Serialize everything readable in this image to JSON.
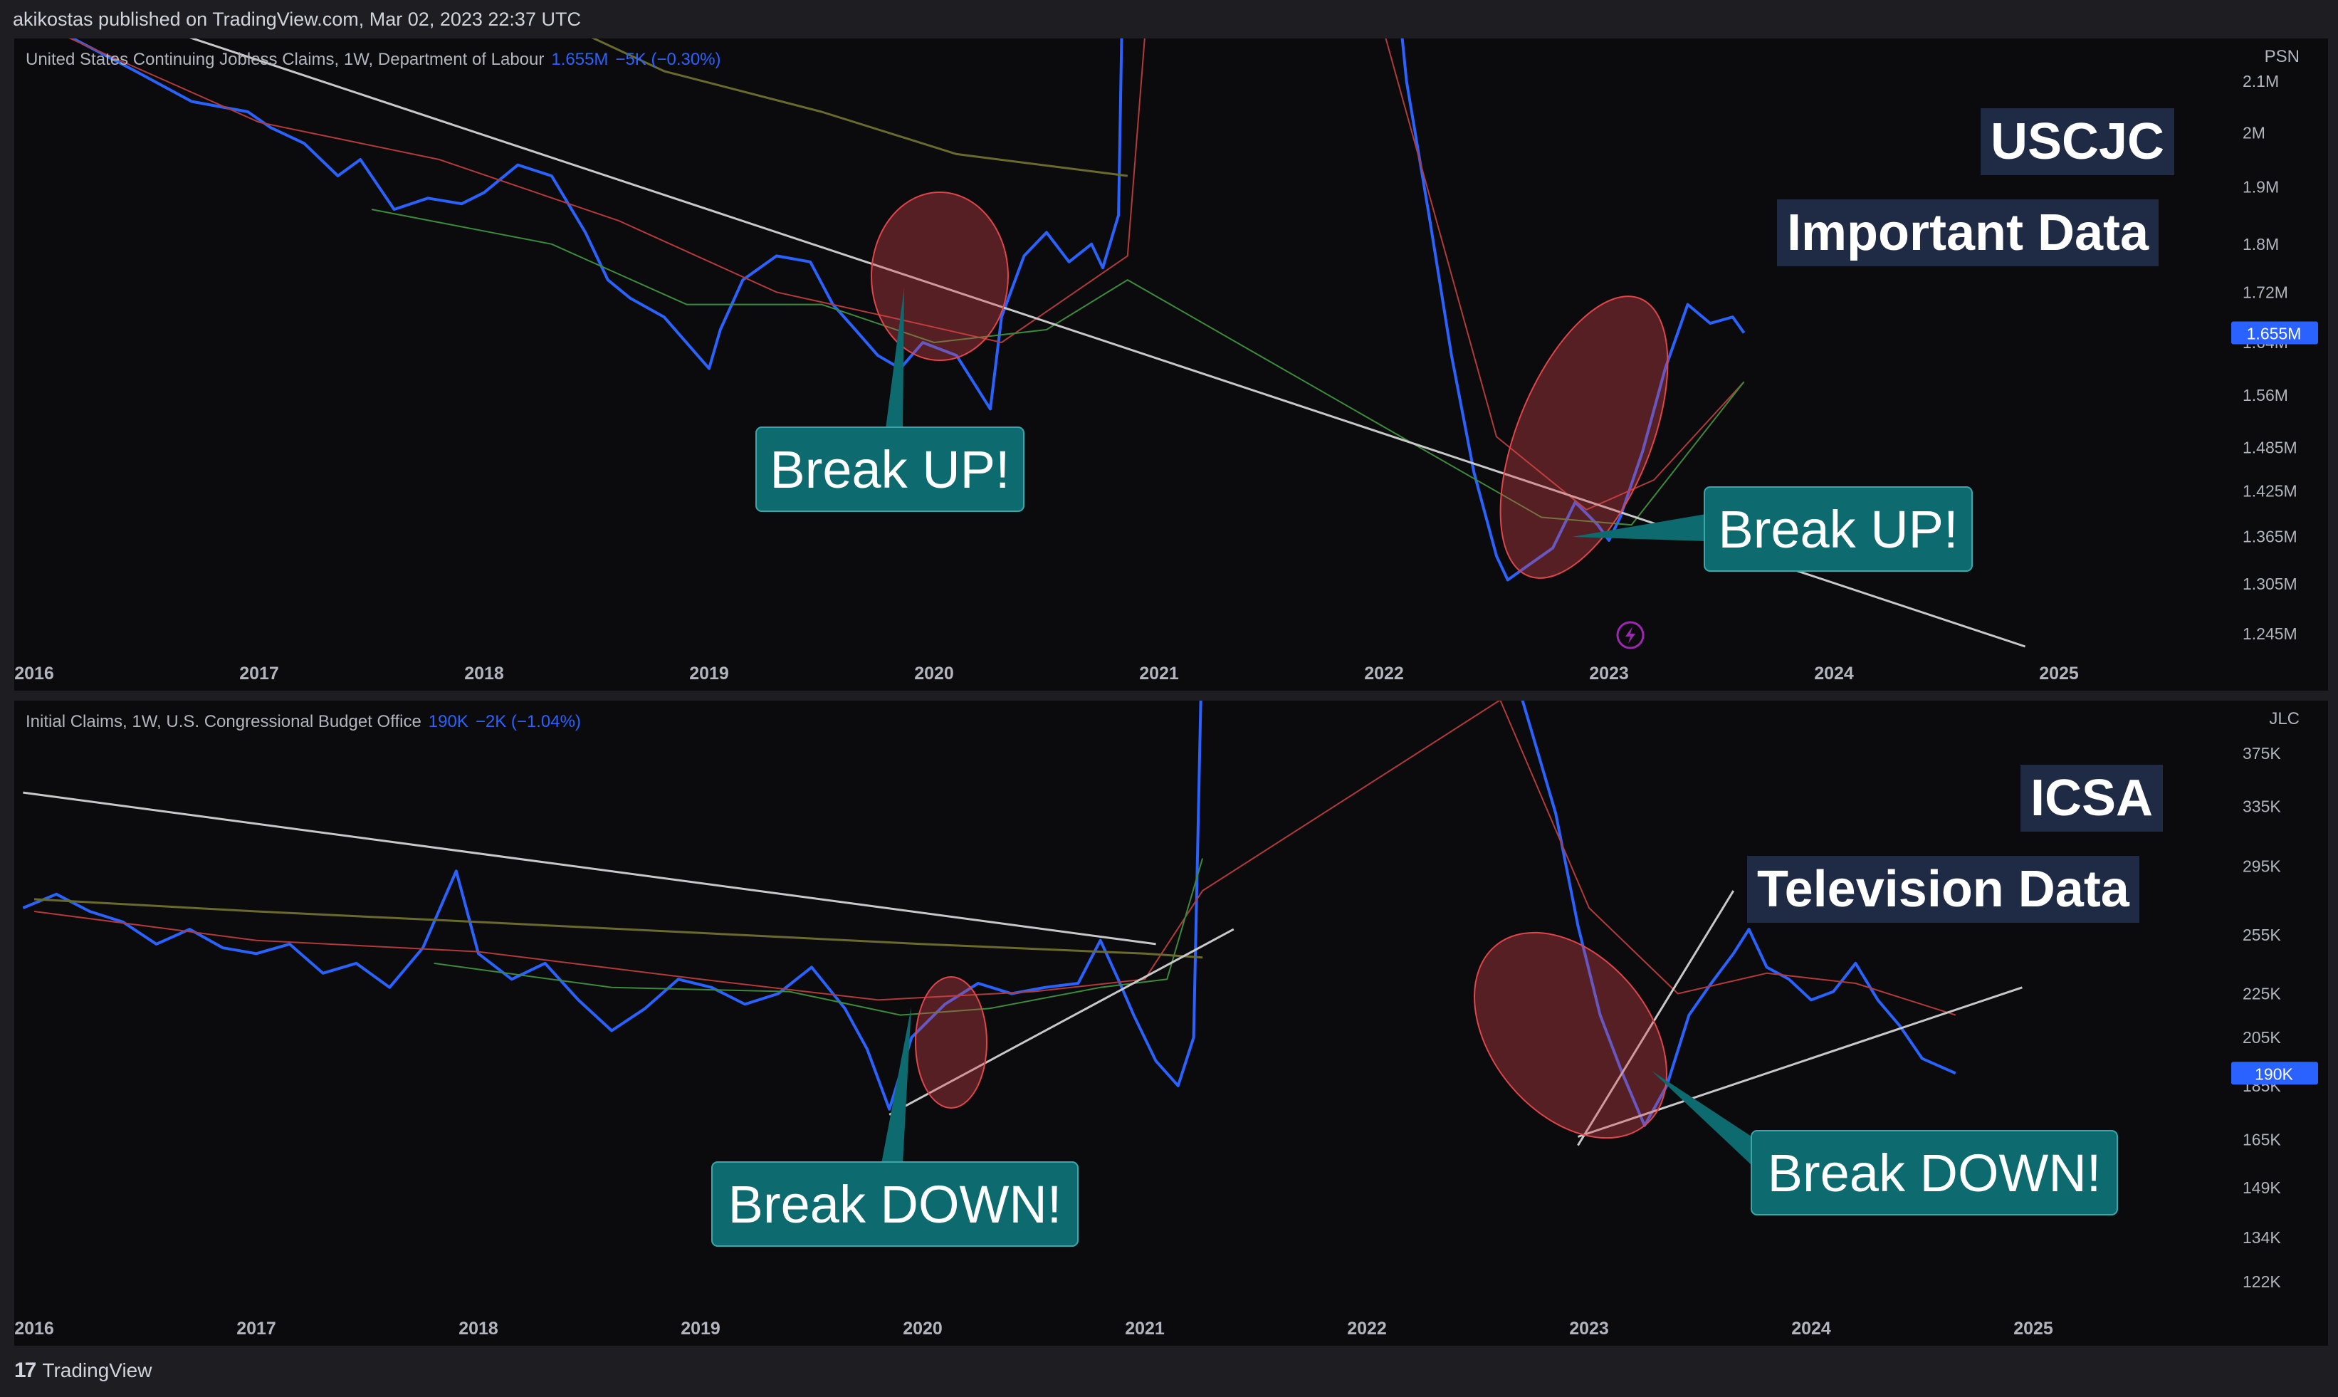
{
  "header": {
    "published": "akikostas published on TradingView.com, Mar 02, 2023 22:37 UTC"
  },
  "footer": {
    "brand": "TradingView",
    "logo_icon": "tradingview-logo-icon"
  },
  "colors": {
    "series": "#2962ff",
    "ma_fast": "#b23a3a",
    "ma_slow": "#3c8a3c",
    "ma_long": "#6b6a2e",
    "trendline": "#c8c8c8",
    "callout": "#0d6b70",
    "ellipse": "#e0454a",
    "label_bg": "#1f2b44",
    "price_tag": "#2962ff"
  },
  "chart_data": [
    {
      "type": "line",
      "legend": {
        "name": "United States Continuing Jobless Claims, 1W, Department of Labour",
        "value": "1.655M",
        "change": "−5K (−0.30%)"
      },
      "unit": "PSN",
      "current_value_label": "1.655M",
      "x_ticks": [
        "2016",
        "2017",
        "2018",
        "2019",
        "2020",
        "2021",
        "2022",
        "2023",
        "2024",
        "2025"
      ],
      "y_ticks": [
        "2.1M",
        "2M",
        "1.9M",
        "1.8M",
        "1.72M",
        "1.64M",
        "1.56M",
        "1.485M",
        "1.425M",
        "1.365M",
        "1.305M",
        "1.245M"
      ],
      "log_scale": true,
      "overlay_labels": [
        "USCJC",
        "Important Data"
      ],
      "annotations": [
        "Break UP!",
        "Break UP!"
      ],
      "series": [
        {
          "values": [
            [
              2015.95,
              2.24
            ],
            [
              2016.2,
              2.18
            ],
            [
              2016.45,
              2.12
            ],
            [
              2016.7,
              2.06
            ],
            [
              2016.95,
              2.04
            ],
            [
              2017.05,
              2.01
            ],
            [
              2017.2,
              1.98
            ],
            [
              2017.35,
              1.92
            ],
            [
              2017.45,
              1.95
            ],
            [
              2017.6,
              1.86
            ],
            [
              2017.75,
              1.88
            ],
            [
              2017.9,
              1.87
            ],
            [
              2018.0,
              1.89
            ],
            [
              2018.15,
              1.94
            ],
            [
              2018.3,
              1.92
            ],
            [
              2018.45,
              1.82
            ],
            [
              2018.55,
              1.74
            ],
            [
              2018.65,
              1.71
            ],
            [
              2018.8,
              1.68
            ],
            [
              2019.0,
              1.6
            ],
            [
              2019.05,
              1.66
            ],
            [
              2019.15,
              1.74
            ],
            [
              2019.3,
              1.78
            ],
            [
              2019.45,
              1.77
            ],
            [
              2019.55,
              1.7
            ],
            [
              2019.65,
              1.66
            ],
            [
              2019.75,
              1.62
            ],
            [
              2019.85,
              1.6
            ],
            [
              2019.95,
              1.64
            ],
            [
              2020.1,
              1.62
            ],
            [
              2020.25,
              1.54
            ],
            [
              2020.3,
              1.68
            ],
            [
              2020.4,
              1.78
            ],
            [
              2020.5,
              1.82
            ],
            [
              2020.6,
              1.77
            ],
            [
              2020.7,
              1.8
            ],
            [
              2020.75,
              1.76
            ],
            [
              2020.82,
              1.85
            ],
            [
              2020.86,
              3.0
            ],
            [
              2022.0,
              2.6
            ],
            [
              2022.1,
              2.1
            ],
            [
              2022.2,
              1.85
            ],
            [
              2022.3,
              1.62
            ],
            [
              2022.4,
              1.45
            ],
            [
              2022.5,
              1.34
            ],
            [
              2022.55,
              1.31
            ],
            [
              2022.65,
              1.33
            ],
            [
              2022.75,
              1.35
            ],
            [
              2022.85,
              1.41
            ],
            [
              2022.95,
              1.38
            ],
            [
              2023.0,
              1.36
            ],
            [
              2023.05,
              1.39
            ],
            [
              2023.15,
              1.48
            ],
            [
              2023.25,
              1.6
            ],
            [
              2023.35,
              1.7
            ],
            [
              2023.45,
              1.67
            ],
            [
              2023.55,
              1.68
            ],
            [
              2023.6,
              1.655
            ]
          ]
        },
        {
          "values": [
            [
              2016.0,
              2.22
            ],
            [
              2017.0,
              2.02
            ],
            [
              2017.8,
              1.95
            ],
            [
              2018.6,
              1.84
            ],
            [
              2019.3,
              1.72
            ],
            [
              2019.8,
              1.68
            ],
            [
              2020.3,
              1.64
            ],
            [
              2020.86,
              1.78
            ],
            [
              2021.0,
              2.6
            ],
            [
              2021.6,
              2.8
            ],
            [
              2022.0,
              2.2
            ],
            [
              2022.5,
              1.5
            ],
            [
              2022.9,
              1.4
            ],
            [
              2023.2,
              1.44
            ],
            [
              2023.6,
              1.58
            ]
          ]
        },
        {
          "values": [
            [
              2017.5,
              1.86
            ],
            [
              2018.3,
              1.8
            ],
            [
              2018.9,
              1.7
            ],
            [
              2019.5,
              1.7
            ],
            [
              2020.0,
              1.64
            ],
            [
              2020.5,
              1.66
            ],
            [
              2020.86,
              1.74
            ],
            [
              2022.7,
              1.39
            ],
            [
              2023.1,
              1.38
            ],
            [
              2023.6,
              1.58
            ]
          ]
        },
        {
          "values": [
            [
              2018.2,
              2.25
            ],
            [
              2018.8,
              2.12
            ],
            [
              2019.5,
              2.04
            ],
            [
              2020.1,
              1.96
            ],
            [
              2020.86,
              1.92
            ]
          ]
        },
        {
          "values": [
            [
              2016.3,
              2.25
            ],
            [
              2024.85,
              1.23
            ]
          ]
        }
      ]
    },
    {
      "type": "line",
      "legend": {
        "name": "Initial Claims, 1W, U.S. Congressional Budget Office",
        "value": "190K",
        "change": "−2K (−1.04%)"
      },
      "unit": "JLC",
      "current_value_label": "190K",
      "x_ticks": [
        "2016",
        "2017",
        "2018",
        "2019",
        "2020",
        "2021",
        "2022",
        "2023",
        "2024",
        "2025"
      ],
      "y_ticks": [
        "375K",
        "335K",
        "295K",
        "255K",
        "225K",
        "205K",
        "185K",
        "165K",
        "149K",
        "134K",
        "122K"
      ],
      "log_scale": true,
      "overlay_labels": [
        "ICSA",
        "Television Data"
      ],
      "annotations": [
        "Break DOWN!",
        "Break DOWN!"
      ],
      "series": [
        {
          "values": [
            [
              2015.95,
              270
            ],
            [
              2016.1,
              278
            ],
            [
              2016.25,
              268
            ],
            [
              2016.4,
              262
            ],
            [
              2016.55,
              250
            ],
            [
              2016.7,
              258
            ],
            [
              2016.85,
              248
            ],
            [
              2017.0,
              245
            ],
            [
              2017.15,
              250
            ],
            [
              2017.3,
              235
            ],
            [
              2017.45,
              240
            ],
            [
              2017.6,
              228
            ],
            [
              2017.75,
              248
            ],
            [
              2017.9,
              292
            ],
            [
              2018.0,
              245
            ],
            [
              2018.15,
              232
            ],
            [
              2018.3,
              240
            ],
            [
              2018.45,
              222
            ],
            [
              2018.6,
              208
            ],
            [
              2018.75,
              218
            ],
            [
              2018.9,
              232
            ],
            [
              2019.05,
              228
            ],
            [
              2019.2,
              220
            ],
            [
              2019.35,
              225
            ],
            [
              2019.5,
              238
            ],
            [
              2019.65,
              218
            ],
            [
              2019.75,
              200
            ],
            [
              2019.85,
              176
            ],
            [
              2019.95,
              205
            ],
            [
              2020.1,
              220
            ],
            [
              2020.25,
              230
            ],
            [
              2020.4,
              225
            ],
            [
              2020.55,
              228
            ],
            [
              2020.7,
              230
            ],
            [
              2020.8,
              252
            ],
            [
              2020.88,
              232
            ],
            [
              2020.95,
              215
            ],
            [
              2021.05,
              195
            ],
            [
              2021.15,
              185
            ],
            [
              2021.22,
              205
            ],
            [
              2021.26,
              500
            ],
            [
              2022.55,
              520
            ],
            [
              2022.7,
              420
            ],
            [
              2022.85,
              330
            ],
            [
              2022.95,
              260
            ],
            [
              2023.05,
              215
            ],
            [
              2023.15,
              190
            ],
            [
              2023.25,
              170
            ],
            [
              2023.35,
              185
            ],
            [
              2023.45,
              215
            ],
            [
              2023.55,
              230
            ],
            [
              2023.65,
              245
            ],
            [
              2023.72,
              258
            ],
            [
              2023.8,
              238
            ],
            [
              2023.9,
              232
            ],
            [
              2024.0,
              222
            ],
            [
              2024.1,
              226
            ],
            [
              2024.2,
              240
            ],
            [
              2024.3,
              222
            ],
            [
              2024.4,
              210
            ],
            [
              2024.5,
              196
            ],
            [
              2024.6,
              192
            ],
            [
              2024.65,
              190
            ]
          ]
        },
        {
          "values": [
            [
              2016.0,
              268
            ],
            [
              2017.0,
              252
            ],
            [
              2018.0,
              246
            ],
            [
              2019.0,
              232
            ],
            [
              2019.8,
              222
            ],
            [
              2020.5,
              226
            ],
            [
              2021.0,
              232
            ],
            [
              2021.26,
              280
            ],
            [
              2022.6,
              420
            ],
            [
              2023.0,
              270
            ],
            [
              2023.4,
              225
            ],
            [
              2023.8,
              235
            ],
            [
              2024.2,
              230
            ],
            [
              2024.65,
              215
            ]
          ]
        },
        {
          "values": [
            [
              2017.8,
              240
            ],
            [
              2018.6,
              228
            ],
            [
              2019.4,
              226
            ],
            [
              2019.9,
              215
            ],
            [
              2020.3,
              218
            ],
            [
              2020.8,
              228
            ],
            [
              2021.1,
              232
            ],
            [
              2021.26,
              300
            ]
          ]
        },
        {
          "values": [
            [
              2016.0,
              275
            ],
            [
              2017.0,
              268
            ],
            [
              2018.0,
              262
            ],
            [
              2019.0,
              256
            ],
            [
              2020.0,
              250
            ],
            [
              2021.0,
              245
            ],
            [
              2021.26,
              243
            ]
          ]
        },
        {
          "values": [
            [
              2015.95,
              345
            ],
            [
              2021.05,
              250
            ]
          ]
        },
        {
          "values": [
            [
              2019.85,
              174
            ],
            [
              2021.4,
              258
            ]
          ]
        },
        {
          "values": [
            [
              2022.95,
              163
            ],
            [
              2023.65,
              280
            ]
          ]
        },
        {
          "values": [
            [
              2022.95,
              166
            ],
            [
              2024.95,
              228
            ]
          ]
        }
      ]
    }
  ]
}
